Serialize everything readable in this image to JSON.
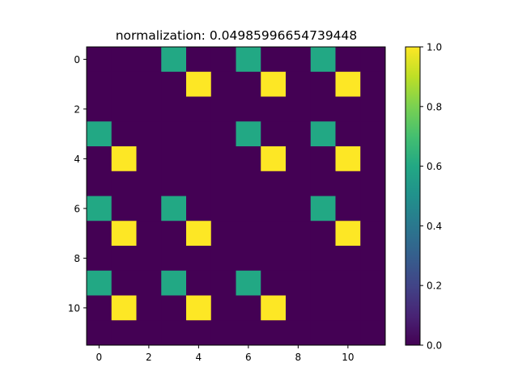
{
  "chart_data": {
    "type": "heatmap",
    "title": "normalization:  0.04985996654739448",
    "xlabel": "",
    "ylabel": "",
    "rows": 12,
    "cols": 12,
    "x_ticks": [
      0,
      2,
      4,
      6,
      8,
      10
    ],
    "y_ticks": [
      0,
      2,
      4,
      6,
      8,
      10
    ],
    "values": [
      [
        0,
        0,
        0,
        0.6,
        0,
        0,
        0.6,
        0,
        0,
        0.6,
        0,
        0
      ],
      [
        0,
        0,
        0,
        0,
        1,
        0,
        0,
        1,
        0,
        0,
        1,
        0
      ],
      [
        0,
        0,
        0,
        0,
        0,
        0,
        0,
        0,
        0,
        0,
        0,
        0
      ],
      [
        0.6,
        0,
        0,
        0,
        0,
        0,
        0.6,
        0,
        0,
        0.6,
        0,
        0
      ],
      [
        0,
        1,
        0,
        0,
        0,
        0,
        0,
        1,
        0,
        0,
        1,
        0
      ],
      [
        0,
        0,
        0,
        0,
        0,
        0,
        0,
        0,
        0,
        0,
        0,
        0
      ],
      [
        0.6,
        0,
        0,
        0.6,
        0,
        0,
        0,
        0,
        0,
        0.6,
        0,
        0
      ],
      [
        0,
        1,
        0,
        0,
        1,
        0,
        0,
        0,
        0,
        0,
        1,
        0
      ],
      [
        0,
        0,
        0,
        0,
        0,
        0,
        0,
        0,
        0,
        0,
        0,
        0
      ],
      [
        0.6,
        0,
        0,
        0.6,
        0,
        0,
        0.6,
        0,
        0,
        0,
        0,
        0
      ],
      [
        0,
        1,
        0,
        0,
        1,
        0,
        0,
        1,
        0,
        0,
        0,
        0
      ],
      [
        0,
        0,
        0,
        0,
        0,
        0,
        0,
        0,
        0,
        0,
        0,
        0
      ]
    ],
    "colormap": "viridis",
    "vmin": 0.0,
    "vmax": 1.0,
    "colorbar_ticks": [
      "0.0",
      "0.2",
      "0.4",
      "0.6",
      "0.8",
      "1.0"
    ]
  }
}
